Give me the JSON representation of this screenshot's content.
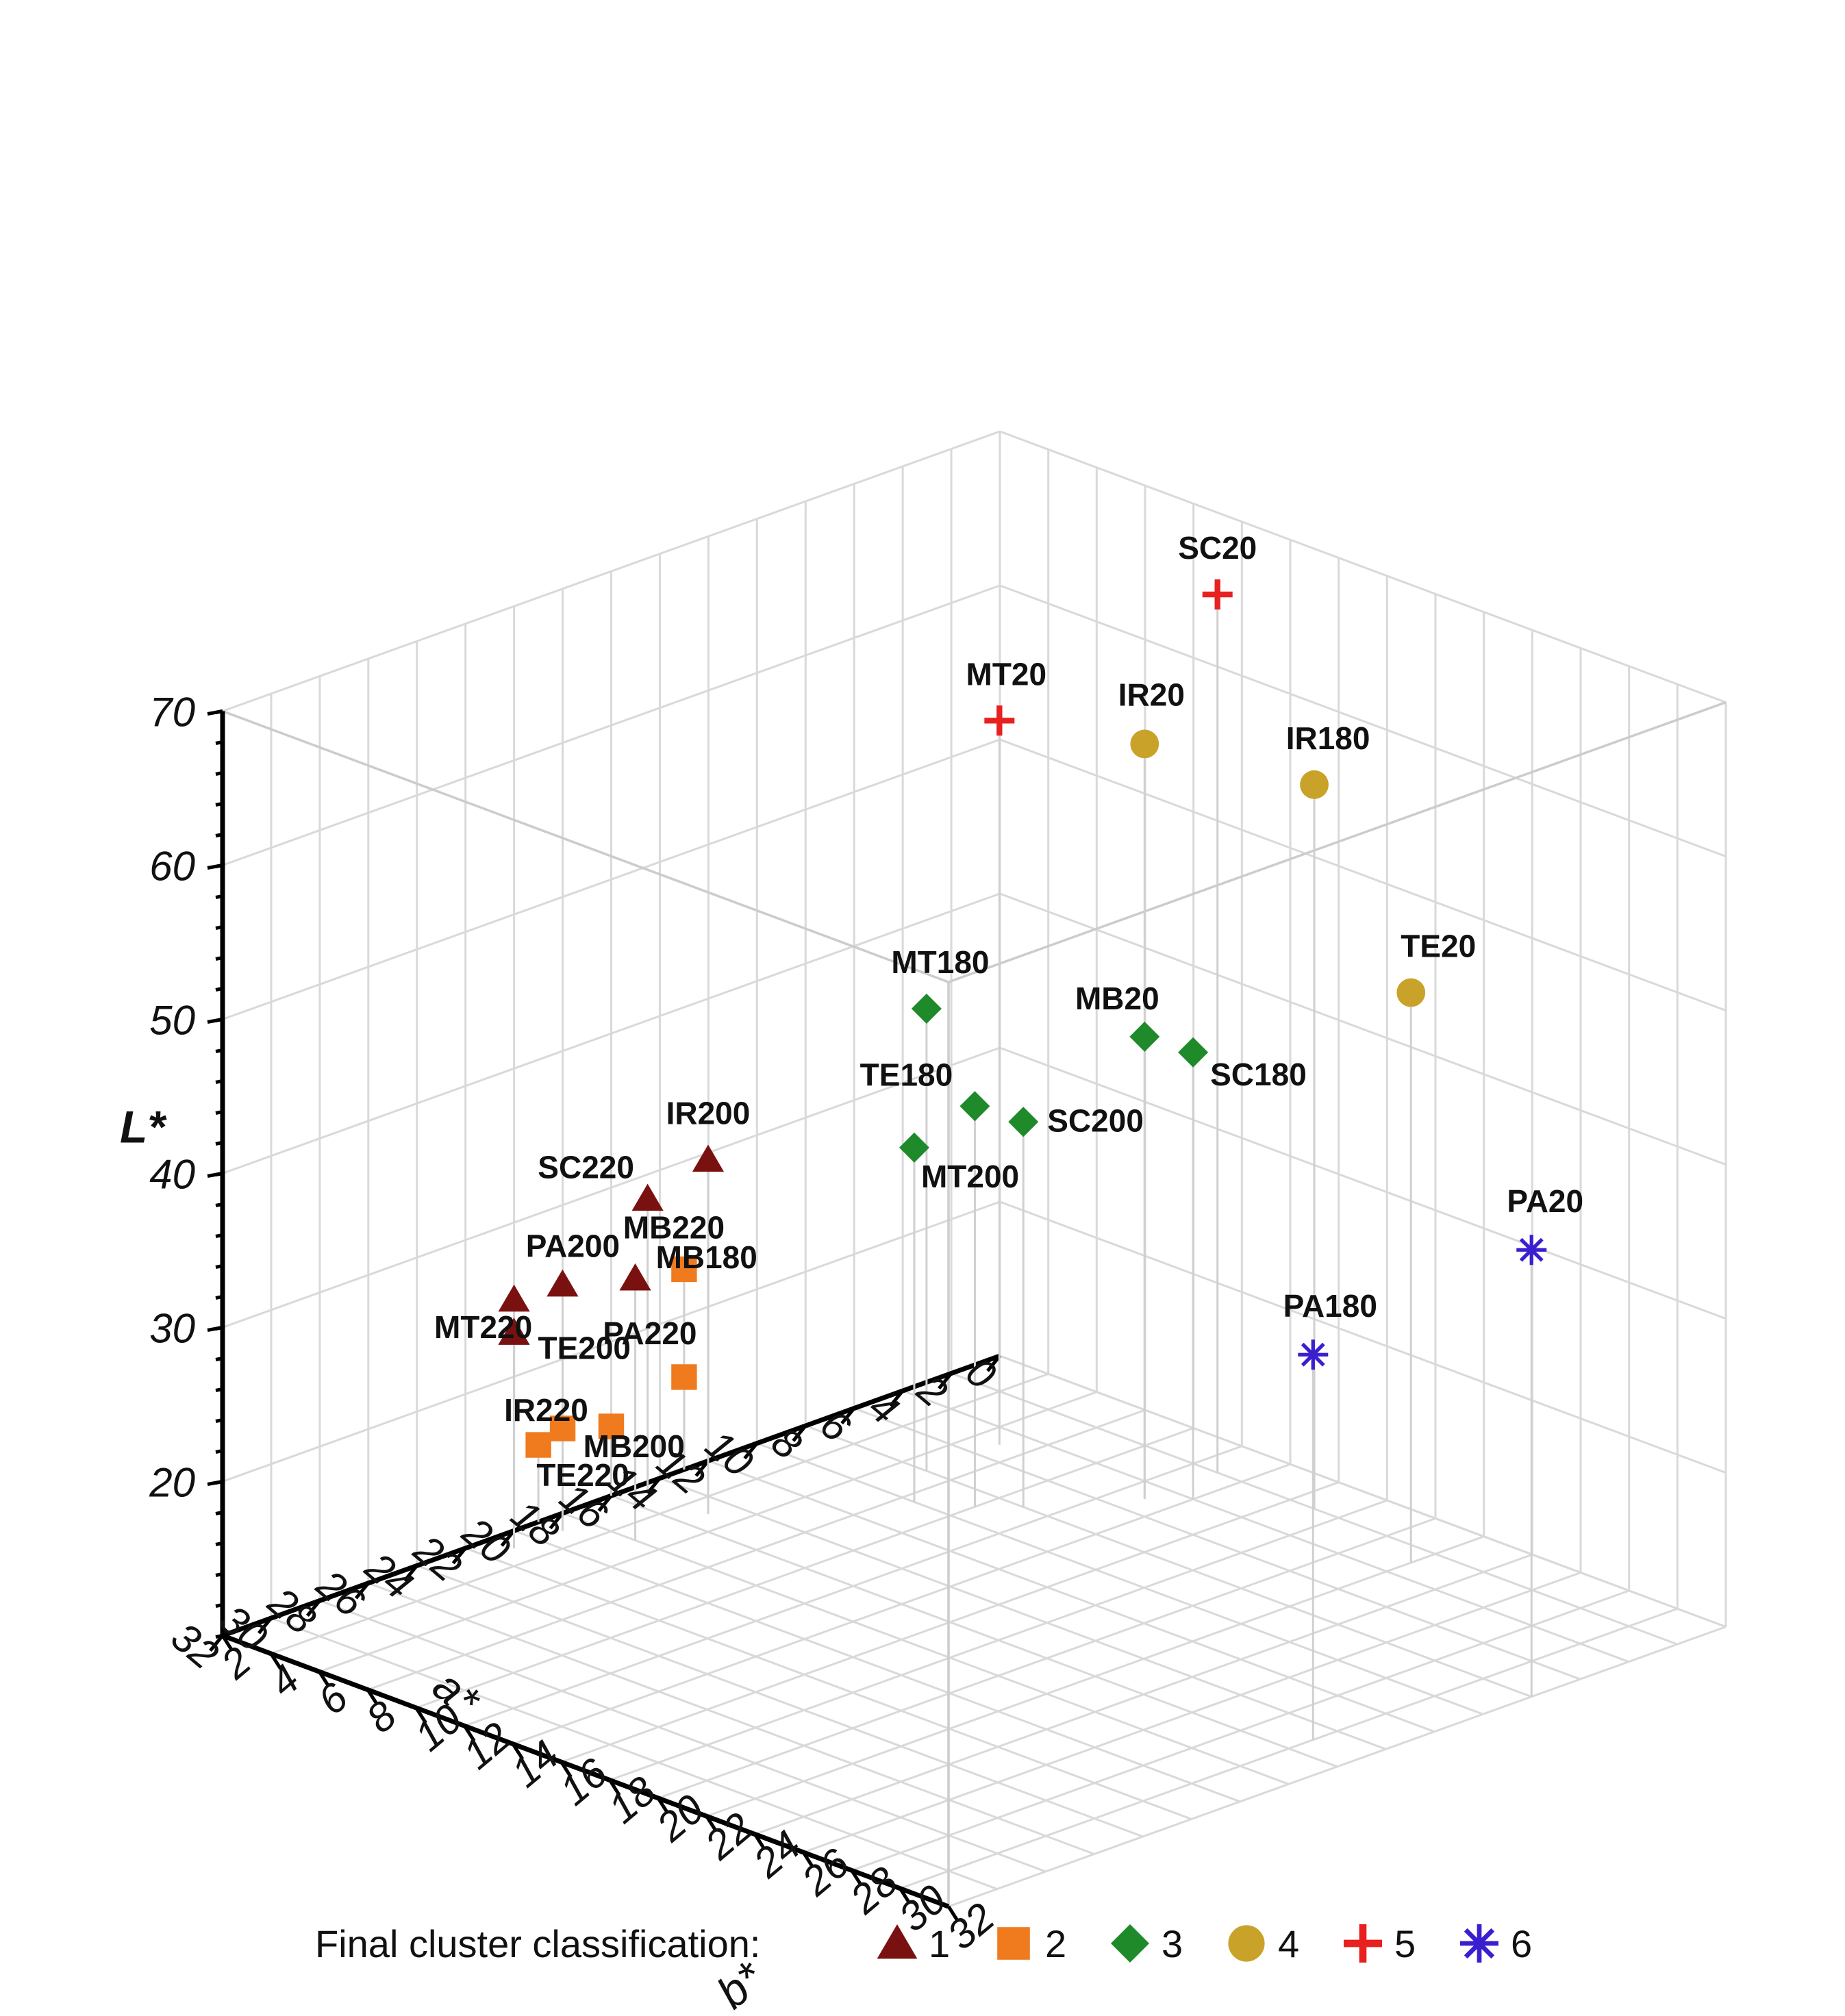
{
  "chart_data": {
    "type": "scatter",
    "dimensions": 3,
    "xlabel": "a*",
    "ylabel": "b*",
    "zlabel": "L*",
    "xlim": [
      0,
      32
    ],
    "ylim": [
      2,
      32
    ],
    "zlim": [
      10,
      70
    ],
    "x_ticks": [
      "0",
      "2",
      "4",
      "6",
      "8",
      "10",
      "12",
      "14",
      "16",
      "18",
      "20",
      "22",
      "24",
      "26",
      "28",
      "30",
      "32"
    ],
    "y_ticks": [
      "2",
      "4",
      "6",
      "8",
      "10",
      "12",
      "14",
      "16",
      "18",
      "20",
      "22",
      "24",
      "26",
      "28",
      "30",
      "32"
    ],
    "z_ticks": [
      "20",
      "30",
      "40",
      "50",
      "60",
      "70"
    ],
    "grid": true,
    "legend": {
      "title": "Final cluster classification:",
      "position": "bottom",
      "entries": [
        {
          "label": "1",
          "marker": "triangle",
          "color": "#7a1111"
        },
        {
          "label": "2",
          "marker": "square",
          "color": "#f07a1e"
        },
        {
          "label": "3",
          "marker": "diamond",
          "color": "#1e8a2a"
        },
        {
          "label": "4",
          "marker": "circle",
          "color": "#c9a22a"
        },
        {
          "label": "5",
          "marker": "plus",
          "color": "#e82020"
        },
        {
          "label": "6",
          "marker": "asterisk",
          "color": "#3a1fd0"
        }
      ]
    },
    "points": [
      {
        "label": "SC20",
        "a": 2.0,
        "b": 13.0,
        "L": 67.0,
        "cluster": 5
      },
      {
        "label": "MT20",
        "a": 5.0,
        "b": 7.0,
        "L": 57.0,
        "cluster": 5
      },
      {
        "label": "IR20",
        "a": 5.0,
        "b": 13.0,
        "L": 59.0,
        "cluster": 4
      },
      {
        "label": "IR180",
        "a": 2.0,
        "b": 17.0,
        "L": 57.0,
        "cluster": 4
      },
      {
        "label": "TE20",
        "a": 3.0,
        "b": 22.0,
        "L": 47.0,
        "cluster": 4
      },
      {
        "label": "MT180",
        "a": 8.0,
        "b": 7.0,
        "L": 40.0,
        "cluster": 3
      },
      {
        "label": "MB20",
        "a": 5.0,
        "b": 13.0,
        "L": 40.0,
        "cluster": 3
      },
      {
        "label": "SC180",
        "a": 4.0,
        "b": 14.0,
        "L": 39.0,
        "cluster": 3
      },
      {
        "label": "TE180",
        "a": 9.0,
        "b": 10.0,
        "L": 36.0,
        "cluster": 3
      },
      {
        "label": "SC200",
        "a": 8.0,
        "b": 11.0,
        "L": 35.0,
        "cluster": 3
      },
      {
        "label": "MT200",
        "a": 10.0,
        "b": 8.5,
        "L": 33.0,
        "cluster": 3
      },
      {
        "label": "IR200",
        "a": 15.0,
        "b": 5.0,
        "L": 33.0,
        "cluster": 1
      },
      {
        "label": "SC220",
        "a": 15.0,
        "b": 2.5,
        "L": 29.0,
        "cluster": 1
      },
      {
        "label": "MB180",
        "a": 18.0,
        "b": 5.0,
        "L": 27.0,
        "cluster": 1
      },
      {
        "label": "PA200",
        "a": 19.0,
        "b": 3.0,
        "L": 26.0,
        "cluster": 1
      },
      {
        "label": "MT220",
        "a": 20.0,
        "b": 2.0,
        "L": 25.0,
        "cluster": 1
      },
      {
        "label": "TE200",
        "a": 21.0,
        "b": 3.0,
        "L": 24.0,
        "cluster": 1
      },
      {
        "label": "MB220",
        "a": 13.0,
        "b": 2.0,
        "L": 23.0,
        "cluster": 2
      },
      {
        "label": "PA220",
        "a": 13.0,
        "b": 2.0,
        "L": 16.0,
        "cluster": 2
      },
      {
        "label": "IR220",
        "a": 16.0,
        "b": 2.0,
        "L": 14.5,
        "cluster": 2
      },
      {
        "label": "MB200",
        "a": 18.0,
        "b": 2.0,
        "L": 15.5,
        "cluster": 2
      },
      {
        "label": "TE220",
        "a": 19.0,
        "b": 2.0,
        "L": 15.0,
        "cluster": 2
      },
      {
        "label": "PA20",
        "a": 8.0,
        "b": 32.0,
        "L": 39.0,
        "cluster": 6
      },
      {
        "label": "PA180",
        "a": 15.0,
        "b": 30.0,
        "L": 35.0,
        "cluster": 6
      }
    ]
  }
}
